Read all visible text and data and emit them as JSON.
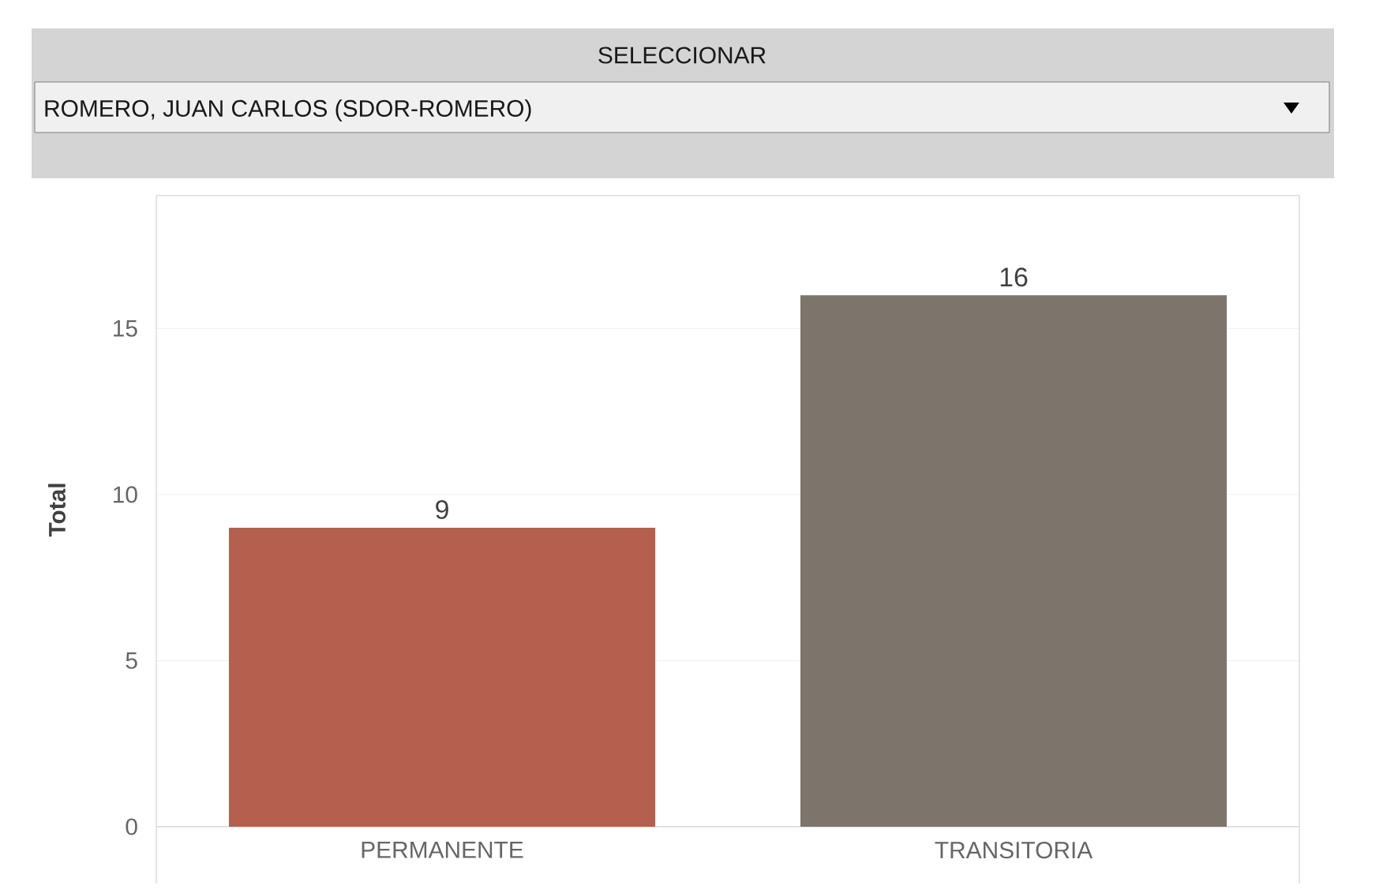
{
  "chart_data": {
    "type": "bar",
    "title": "SELECCIONAR",
    "subtitle": "ROMERO, JUAN CARLOS (SDOR-ROMERO)",
    "ylabel": "Total",
    "categories": [
      "PERMANENTE",
      "TRANSITORIA"
    ],
    "values": [
      9,
      16
    ],
    "colors": [
      "#b5604f",
      "#7d746b"
    ],
    "ylim": [
      0,
      19
    ],
    "yticks": [
      0,
      5,
      10,
      15
    ],
    "grid": "y",
    "data_labels": true
  }
}
